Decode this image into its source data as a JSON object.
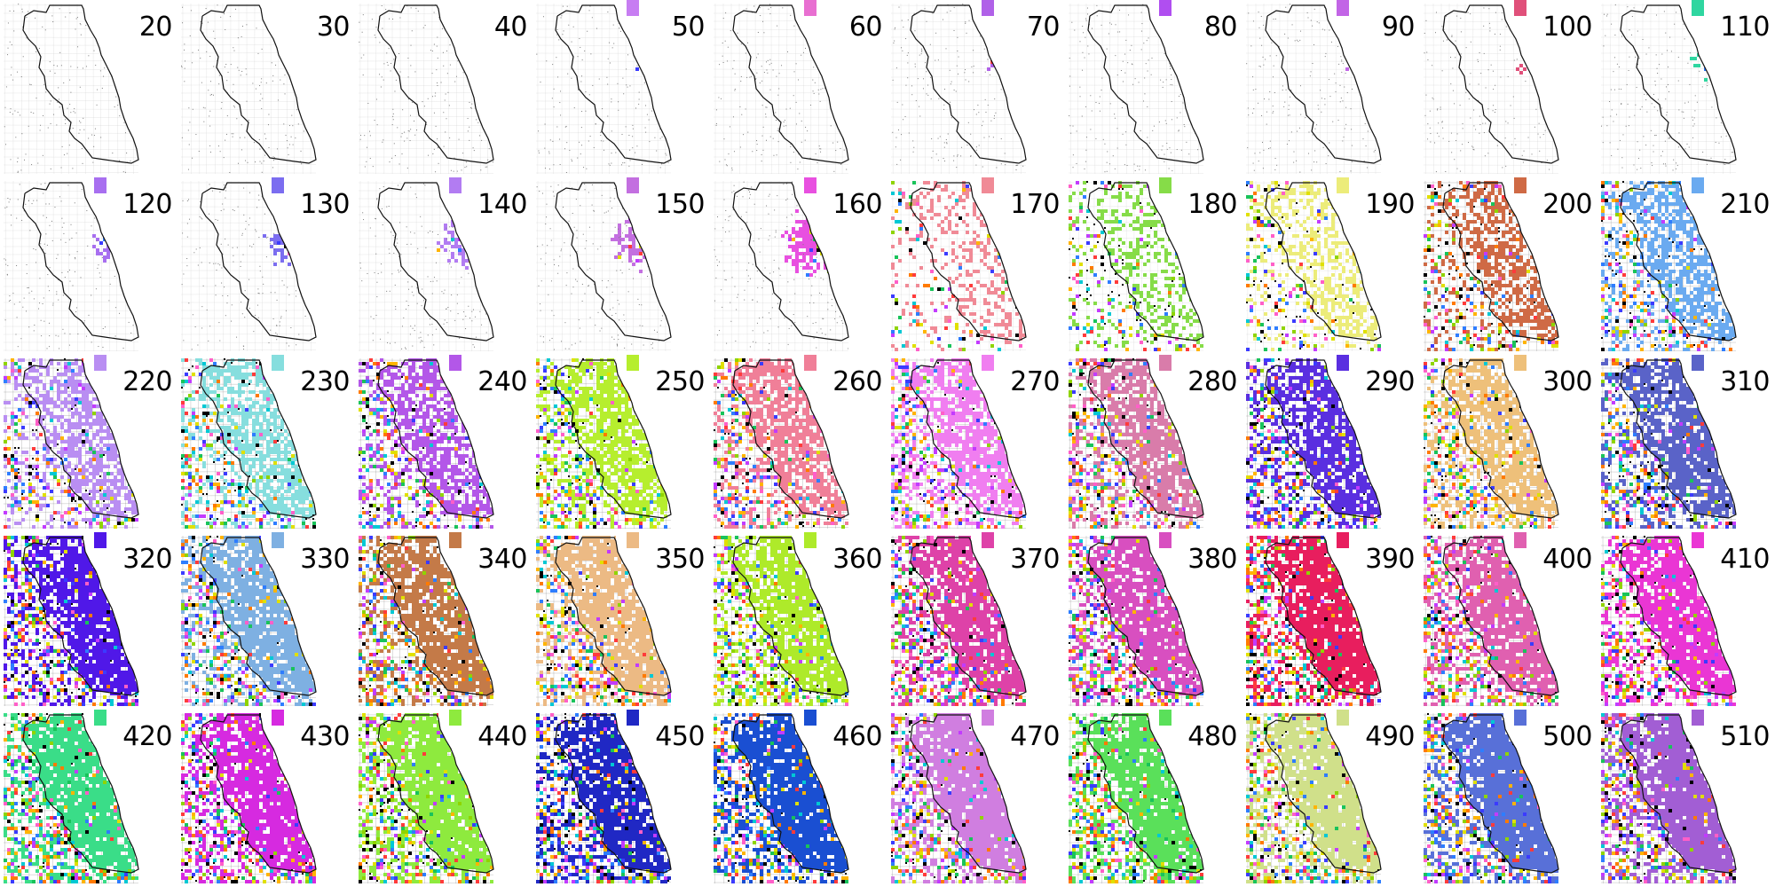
{
  "figure": {
    "panels": [
      {
        "label": "20",
        "color": "#9a9a9a",
        "coverage": 0.0
      },
      {
        "label": "30",
        "color": "#9a9a9a",
        "coverage": 0.0
      },
      {
        "label": "40",
        "color": "#9a9a9a",
        "coverage": 0.0
      },
      {
        "label": "50",
        "color": "#c77df2",
        "coverage": 0.02
      },
      {
        "label": "60",
        "color": "#e86fd1",
        "coverage": 0.03
      },
      {
        "label": "70",
        "color": "#b061e8",
        "coverage": 0.04
      },
      {
        "label": "80",
        "color": "#b04ef0",
        "coverage": 0.05
      },
      {
        "label": "90",
        "color": "#c265e6",
        "coverage": 0.05
      },
      {
        "label": "100",
        "color": "#e0507a",
        "coverage": 0.07
      },
      {
        "label": "110",
        "color": "#2fd6a0",
        "coverage": 0.08
      },
      {
        "label": "120",
        "color": "#a86ff0",
        "coverage": 0.1
      },
      {
        "label": "130",
        "color": "#7b6df0",
        "coverage": 0.12
      },
      {
        "label": "140",
        "color": "#b27cf2",
        "coverage": 0.13
      },
      {
        "label": "150",
        "color": "#c36fe0",
        "coverage": 0.14
      },
      {
        "label": "160",
        "color": "#e850e0",
        "coverage": 0.18
      },
      {
        "label": "170",
        "color": "#f08a96",
        "coverage": 0.3
      },
      {
        "label": "180",
        "color": "#86dc48",
        "coverage": 0.38
      },
      {
        "label": "190",
        "color": "#ecec7a",
        "coverage": 0.48
      },
      {
        "label": "200",
        "color": "#cf6a45",
        "coverage": 0.58
      },
      {
        "label": "210",
        "color": "#6aaaf0",
        "coverage": 0.62
      },
      {
        "label": "220",
        "color": "#b98ef2",
        "coverage": 0.66
      },
      {
        "label": "230",
        "color": "#86dede",
        "coverage": 0.68
      },
      {
        "label": "240",
        "color": "#b357e8",
        "coverage": 0.7
      },
      {
        "label": "250",
        "color": "#b6ee2e",
        "coverage": 0.74
      },
      {
        "label": "260",
        "color": "#f07f98",
        "coverage": 0.74
      },
      {
        "label": "270",
        "color": "#f07ef0",
        "coverage": 0.76
      },
      {
        "label": "280",
        "color": "#d97caa",
        "coverage": 0.76
      },
      {
        "label": "290",
        "color": "#5a2fe0",
        "coverage": 0.8
      },
      {
        "label": "300",
        "color": "#eec07a",
        "coverage": 0.8
      },
      {
        "label": "310",
        "color": "#5a63c8",
        "coverage": 0.8
      },
      {
        "label": "320",
        "color": "#5018e8",
        "coverage": 0.84
      },
      {
        "label": "330",
        "color": "#7eb0e2",
        "coverage": 0.84
      },
      {
        "label": "340",
        "color": "#c47a48",
        "coverage": 0.84
      },
      {
        "label": "350",
        "color": "#ecba84",
        "coverage": 0.86
      },
      {
        "label": "360",
        "color": "#aeea2a",
        "coverage": 0.86
      },
      {
        "label": "370",
        "color": "#de42a8",
        "coverage": 0.88
      },
      {
        "label": "380",
        "color": "#d84fc0",
        "coverage": 0.88
      },
      {
        "label": "390",
        "color": "#e81e5e",
        "coverage": 0.9
      },
      {
        "label": "400",
        "color": "#e060b0",
        "coverage": 0.88
      },
      {
        "label": "410",
        "color": "#ea36d4",
        "coverage": 0.9
      },
      {
        "label": "420",
        "color": "#3add88",
        "coverage": 0.9
      },
      {
        "label": "430",
        "color": "#d62ae0",
        "coverage": 0.9
      },
      {
        "label": "440",
        "color": "#8eea3e",
        "coverage": 0.92
      },
      {
        "label": "450",
        "color": "#2028c4",
        "coverage": 0.92
      },
      {
        "label": "460",
        "color": "#1a4fd2",
        "coverage": 0.92
      },
      {
        "label": "470",
        "color": "#d07ee0",
        "coverage": 0.93
      },
      {
        "label": "480",
        "color": "#5ae05a",
        "coverage": 0.93
      },
      {
        "label": "490",
        "color": "#d0e08a",
        "coverage": 0.94
      },
      {
        "label": "500",
        "color": "#5870d8",
        "coverage": 0.95
      },
      {
        "label": "510",
        "color": "#a25ed4",
        "coverage": 0.95
      }
    ]
  }
}
